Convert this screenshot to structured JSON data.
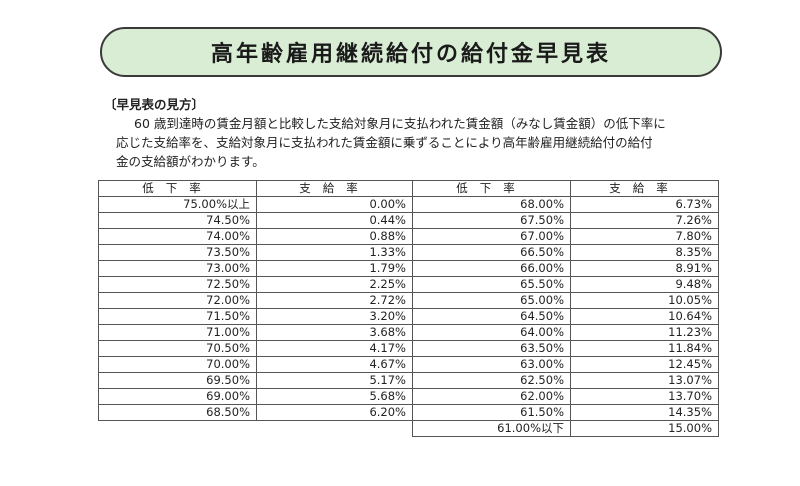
{
  "title": "高年齢雇用継続給付の給付金早見表",
  "heading": "〔早見表の見方〕",
  "description": [
    "60 歳到達時の賃金月額と比較した支給対象月に支払われた賃金額（みなし賃金額）の低下率に",
    "応じた支給率を、支給対象月に支払われた賃金額に乗ずることにより高年齢雇用継続給付の給付",
    "金の支給額がわかります。"
  ],
  "table_left": {
    "headers": [
      "低下率",
      "支給率"
    ],
    "rows": [
      [
        "75.00%以上",
        "0.00%"
      ],
      [
        "74.50%",
        "0.44%"
      ],
      [
        "74.00%",
        "0.88%"
      ],
      [
        "73.50%",
        "1.33%"
      ],
      [
        "73.00%",
        "1.79%"
      ],
      [
        "72.50%",
        "2.25%"
      ],
      [
        "72.00%",
        "2.72%"
      ],
      [
        "71.50%",
        "3.20%"
      ],
      [
        "71.00%",
        "3.68%"
      ],
      [
        "70.50%",
        "4.17%"
      ],
      [
        "70.00%",
        "4.67%"
      ],
      [
        "69.50%",
        "5.17%"
      ],
      [
        "69.00%",
        "5.68%"
      ],
      [
        "68.50%",
        "6.20%"
      ]
    ]
  },
  "table_right": {
    "headers": [
      "低下率",
      "支給率"
    ],
    "rows": [
      [
        "68.00%",
        "6.73%"
      ],
      [
        "67.50%",
        "7.26%"
      ],
      [
        "67.00%",
        "7.80%"
      ],
      [
        "66.50%",
        "8.35%"
      ],
      [
        "66.00%",
        "8.91%"
      ],
      [
        "65.50%",
        "9.48%"
      ],
      [
        "65.00%",
        "10.05%"
      ],
      [
        "64.50%",
        "10.64%"
      ],
      [
        "64.00%",
        "11.23%"
      ],
      [
        "63.50%",
        "11.84%"
      ],
      [
        "63.00%",
        "12.45%"
      ],
      [
        "62.50%",
        "13.07%"
      ],
      [
        "62.00%",
        "13.70%"
      ],
      [
        "61.50%",
        "14.35%"
      ],
      [
        "61.00%以下",
        "15.00%"
      ]
    ]
  },
  "colors": {
    "title_background": "#d9ecd4",
    "border": "#555555"
  }
}
